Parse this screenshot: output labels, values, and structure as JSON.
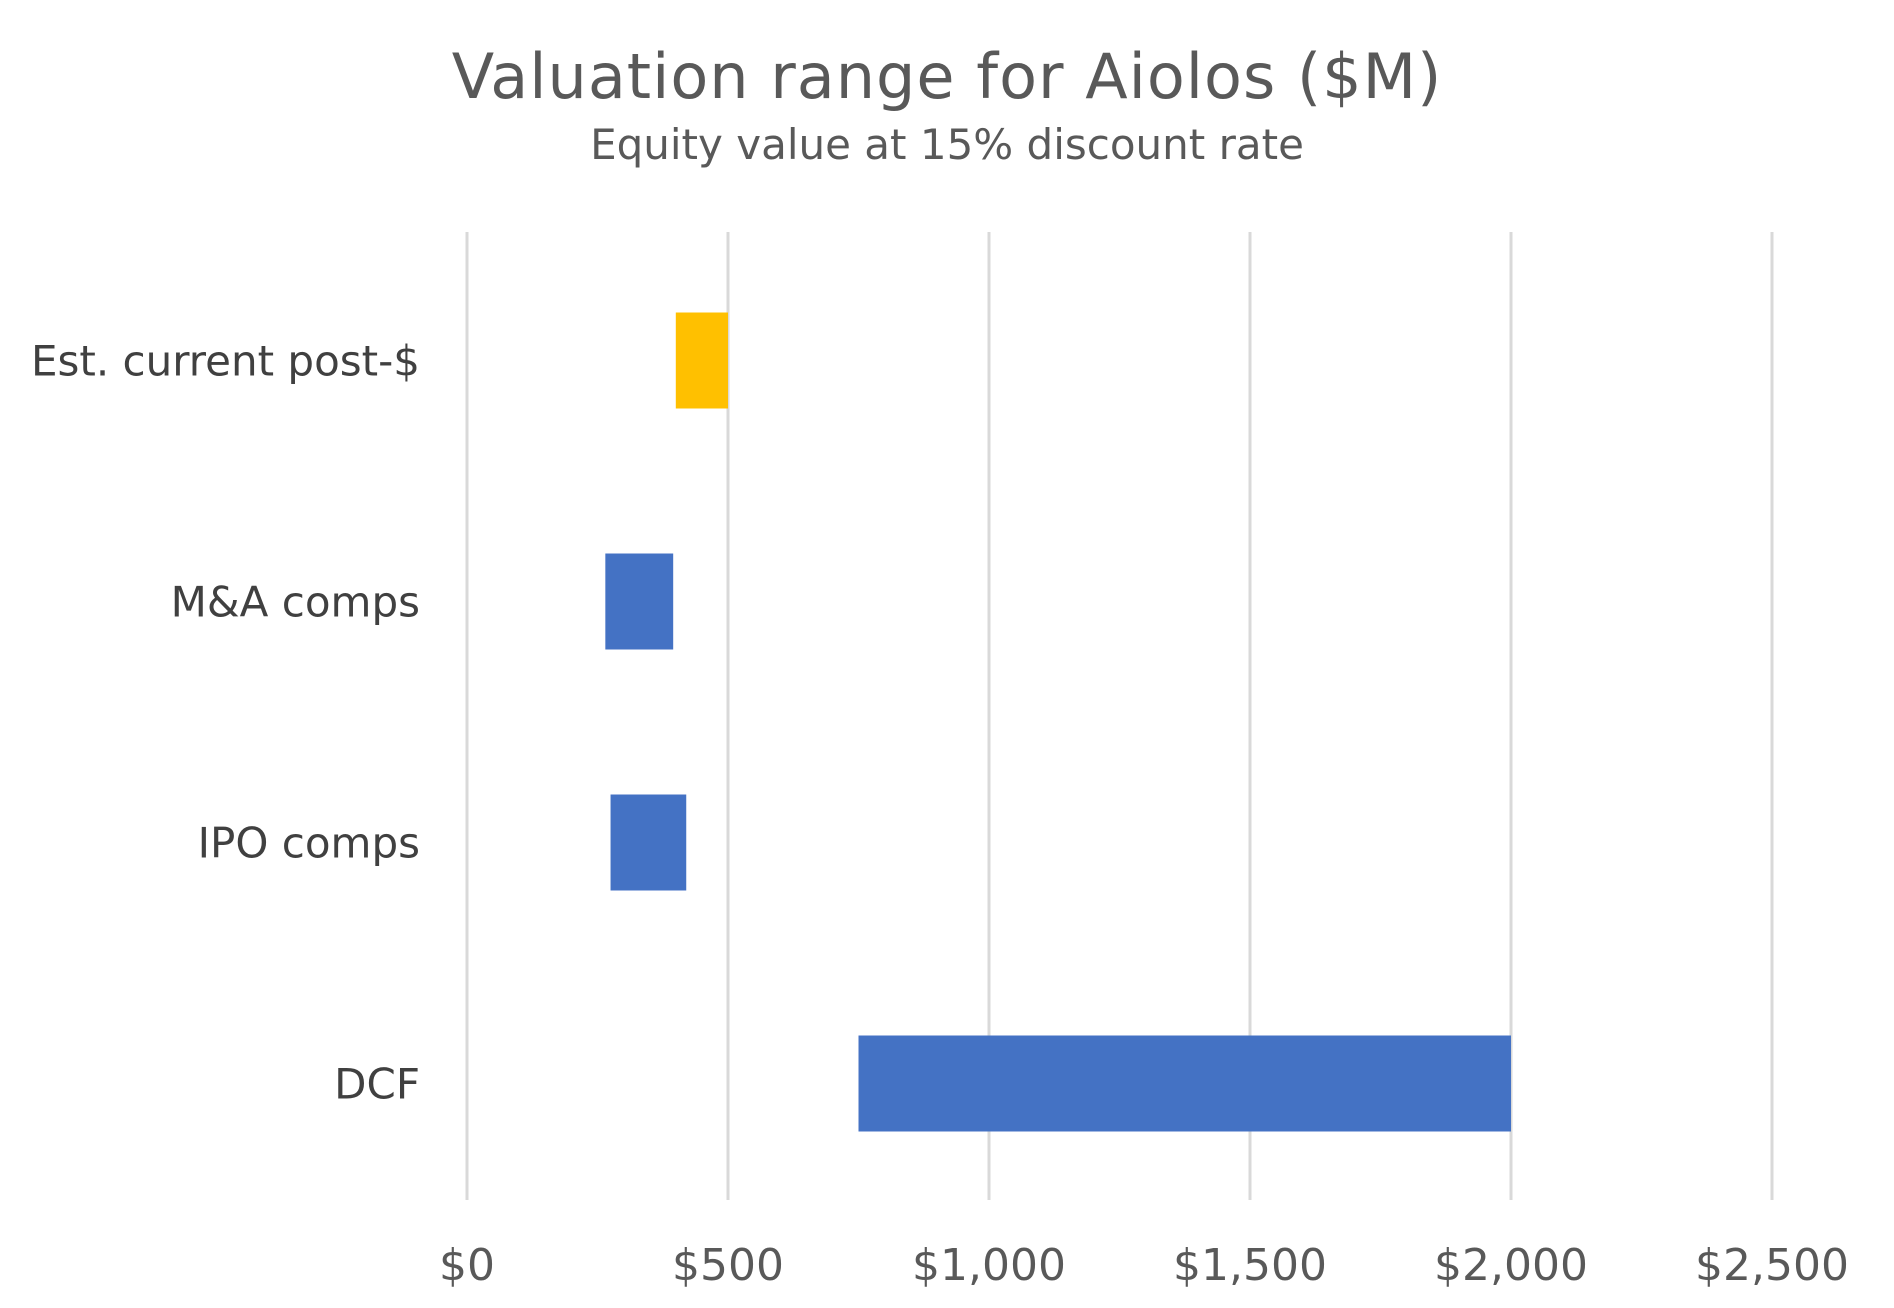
{
  "chart_data": {
    "type": "bar",
    "orientation": "horizontal",
    "stacked_range": true,
    "title": "Valuation range for Aiolos ($M)",
    "subtitle": "Equity value at 15% discount rate",
    "xlabel": "",
    "ylabel": "",
    "xlim": [
      0,
      2500
    ],
    "xticks": [
      0,
      500,
      1000,
      1500,
      2000,
      2500
    ],
    "xtick_labels": [
      "$0",
      "$500",
      "$1,000",
      "$1,500",
      "$2,000",
      "$2,500"
    ],
    "grid": true,
    "legend": "none",
    "categories": [
      "Est. current post-$",
      "M&A comps",
      "IPO comps",
      "DCF"
    ],
    "ranges": [
      {
        "category": "Est. current post-$",
        "low": 400,
        "high": 500,
        "color": "#FFC000"
      },
      {
        "category": "M&A comps",
        "low": 265,
        "high": 395,
        "color": "#4472C4"
      },
      {
        "category": "IPO comps",
        "low": 275,
        "high": 420,
        "color": "#4472C4"
      },
      {
        "category": "DCF",
        "low": 750,
        "high": 2000,
        "color": "#4472C4"
      }
    ]
  }
}
